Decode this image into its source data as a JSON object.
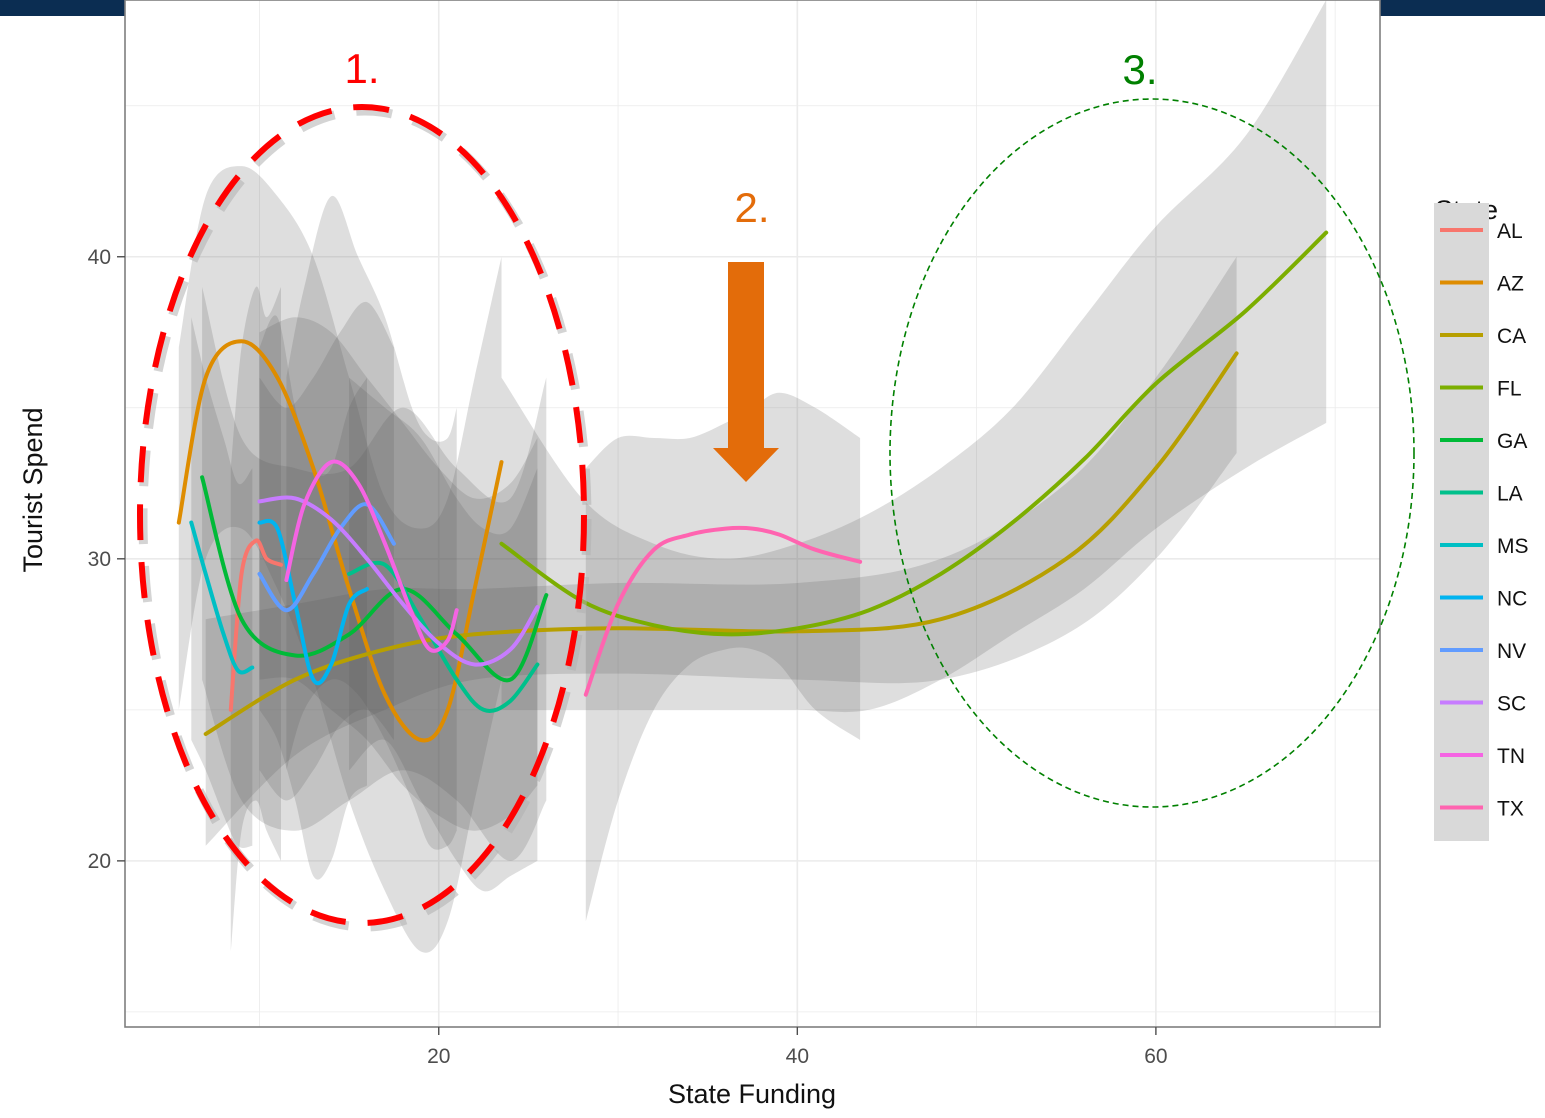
{
  "colors": {
    "top_bar": "#0b2d52",
    "panel_border": "#7f7f7f",
    "grid": "#ebebeb",
    "ribbon": "#5a5a5a",
    "legend_bg": "#d9d9d9"
  },
  "annotations": [
    {
      "label": "1.",
      "color": "#ff0000",
      "style": "dashed-thick-ellipse"
    },
    {
      "label": "2.",
      "color": "#e36c0a",
      "style": "down-arrow"
    },
    {
      "label": "3.",
      "color": "#008000",
      "style": "dashed-thin-ellipse"
    }
  ],
  "chart_data": {
    "type": "line",
    "title": "",
    "xlabel": "State Funding",
    "ylabel": "Tourist Spend",
    "xlim": [
      2.5,
      72.5
    ],
    "ylim": [
      14.5,
      48.5
    ],
    "x_ticks": [
      20,
      40,
      60
    ],
    "y_ticks": [
      20,
      30,
      40
    ],
    "grid": true,
    "smoothing": "loess with grey confidence ribbons",
    "legend": {
      "title": "State",
      "position": "right"
    },
    "series": [
      {
        "name": "AL",
        "color": "#f8766d",
        "x": [
          8.4,
          9,
          9.8,
          10.4,
          11.2
        ],
        "y": [
          25,
          29.5,
          30.6,
          30,
          29.8
        ],
        "lower": [
          17,
          21,
          22,
          21,
          20
        ],
        "upper": [
          33,
          37,
          39,
          38,
          39
        ]
      },
      {
        "name": "AZ",
        "color": "#de8c00",
        "x": [
          5.5,
          7,
          9,
          11,
          13,
          15,
          17,
          19,
          20.5,
          22,
          23.5
        ],
        "y": [
          31.2,
          36,
          37.2,
          36,
          33,
          29,
          25.5,
          24,
          25,
          29,
          33.2
        ],
        "lower": [
          25,
          30,
          31,
          29,
          26,
          22,
          19,
          17,
          18,
          22,
          26
        ],
        "upper": [
          37,
          42,
          43,
          42,
          40,
          36,
          32,
          31,
          32,
          36,
          40
        ]
      },
      {
        "name": "CA",
        "color": "#b79f00",
        "x": [
          7,
          12,
          17,
          22,
          30,
          40,
          48,
          55,
          60,
          64.5
        ],
        "y": [
          24.2,
          26,
          27,
          27.5,
          27.7,
          27.6,
          28,
          30,
          33,
          36.8
        ],
        "lower": [
          20.5,
          23.5,
          25,
          26,
          26.2,
          26,
          26,
          27.5,
          30,
          33.5
        ],
        "upper": [
          28,
          28.5,
          29,
          29,
          29.2,
          29.2,
          30,
          32.5,
          36,
          40
        ]
      },
      {
        "name": "FL",
        "color": "#7cae00",
        "x": [
          23.5,
          28,
          32,
          36,
          40,
          44,
          48,
          52,
          56,
          60,
          65,
          69.5
        ],
        "y": [
          30.5,
          28.6,
          27.8,
          27.5,
          27.7,
          28.3,
          29.5,
          31.2,
          33.3,
          35.8,
          38.2,
          40.8
        ],
        "lower": [
          25,
          25,
          25,
          25,
          25,
          25,
          26,
          27.5,
          29,
          31,
          33,
          34.5
        ],
        "upper": [
          36,
          32,
          30.5,
          30,
          30.5,
          31.5,
          33,
          35,
          38,
          41,
          44,
          48.5
        ]
      },
      {
        "name": "GA",
        "color": "#00ba38",
        "x": [
          6.8,
          9,
          12,
          15,
          18,
          21,
          24,
          26
        ],
        "y": [
          32.7,
          28,
          26.8,
          27.5,
          29,
          27.5,
          26,
          28.8
        ],
        "lower": [
          26,
          22,
          21,
          22,
          23,
          22,
          20,
          22
        ],
        "upper": [
          39,
          34,
          33,
          33,
          35,
          33,
          32,
          36
        ]
      },
      {
        "name": "LA",
        "color": "#00c08b",
        "x": [
          15,
          17,
          19,
          21,
          22.5,
          24,
          25.5
        ],
        "y": [
          29.5,
          29.8,
          28,
          26,
          25,
          25.3,
          26.5
        ],
        "lower": [
          23,
          24,
          22,
          20,
          19,
          19.5,
          20
        ],
        "upper": [
          36,
          35,
          34,
          32,
          31,
          31,
          33
        ]
      },
      {
        "name": "MS",
        "color": "#00bfc4",
        "x": [
          6.2,
          7,
          8,
          8.8,
          9.6
        ],
        "y": [
          31.2,
          29.5,
          27.5,
          26.3,
          26.4
        ],
        "lower": [
          24,
          23,
          21.5,
          20.5,
          20.5
        ],
        "upper": [
          38,
          36,
          34,
          32.5,
          33
        ]
      },
      {
        "name": "NC",
        "color": "#00b4f0",
        "x": [
          10,
          11,
          12,
          13,
          14,
          15,
          16
        ],
        "y": [
          31.2,
          31,
          28.5,
          26,
          26.5,
          28.5,
          29
        ],
        "lower": [
          25,
          24,
          22,
          19.5,
          20,
          22,
          22.5
        ],
        "upper": [
          37,
          38,
          35,
          33,
          33,
          35,
          36
        ]
      },
      {
        "name": "NV",
        "color": "#619cff",
        "x": [
          10,
          11.5,
          13,
          14.5,
          16,
          17.5
        ],
        "y": [
          29.5,
          28.3,
          29.5,
          31,
          31.8,
          30.5
        ],
        "lower": [
          23,
          22,
          23,
          24.5,
          25,
          24
        ],
        "upper": [
          36,
          35,
          36,
          37.5,
          38.5,
          37
        ]
      },
      {
        "name": "SC",
        "color": "#c77cff",
        "x": [
          10,
          12,
          14,
          16,
          18,
          20,
          22,
          24,
          25.5
        ],
        "y": [
          31.9,
          32,
          31.3,
          30,
          28.5,
          27.2,
          26.5,
          27,
          28.4
        ],
        "lower": [
          26,
          26,
          25,
          24,
          22.5,
          21.5,
          21,
          21.5,
          22.5
        ],
        "upper": [
          37.5,
          38,
          37.5,
          36,
          34.5,
          33,
          32,
          32.5,
          34
        ]
      },
      {
        "name": "TN",
        "color": "#f564e3",
        "x": [
          11.5,
          12.5,
          14,
          15.5,
          17,
          18.5,
          19.5,
          20.5,
          21
        ],
        "y": [
          29.3,
          31.8,
          33.2,
          32.5,
          30.5,
          28.2,
          27,
          27.3,
          28.3
        ],
        "lower": [
          23,
          25,
          26,
          25.5,
          24,
          22,
          20.5,
          20.5,
          21
        ],
        "upper": [
          36,
          39,
          42,
          40,
          38,
          35,
          34,
          34,
          35
        ]
      },
      {
        "name": "TX",
        "color": "#ff64b0",
        "x": [
          28.2,
          30,
          32,
          34,
          36,
          37.5,
          39,
          41,
          43.5
        ],
        "y": [
          25.5,
          28.5,
          30.3,
          30.8,
          31,
          31,
          30.8,
          30.3,
          29.9
        ],
        "lower": [
          18,
          22,
          25,
          26.5,
          27,
          27,
          26.5,
          25,
          24
        ],
        "upper": [
          33,
          34,
          34,
          34,
          34.5,
          35,
          35.5,
          35,
          34
        ]
      }
    ]
  }
}
